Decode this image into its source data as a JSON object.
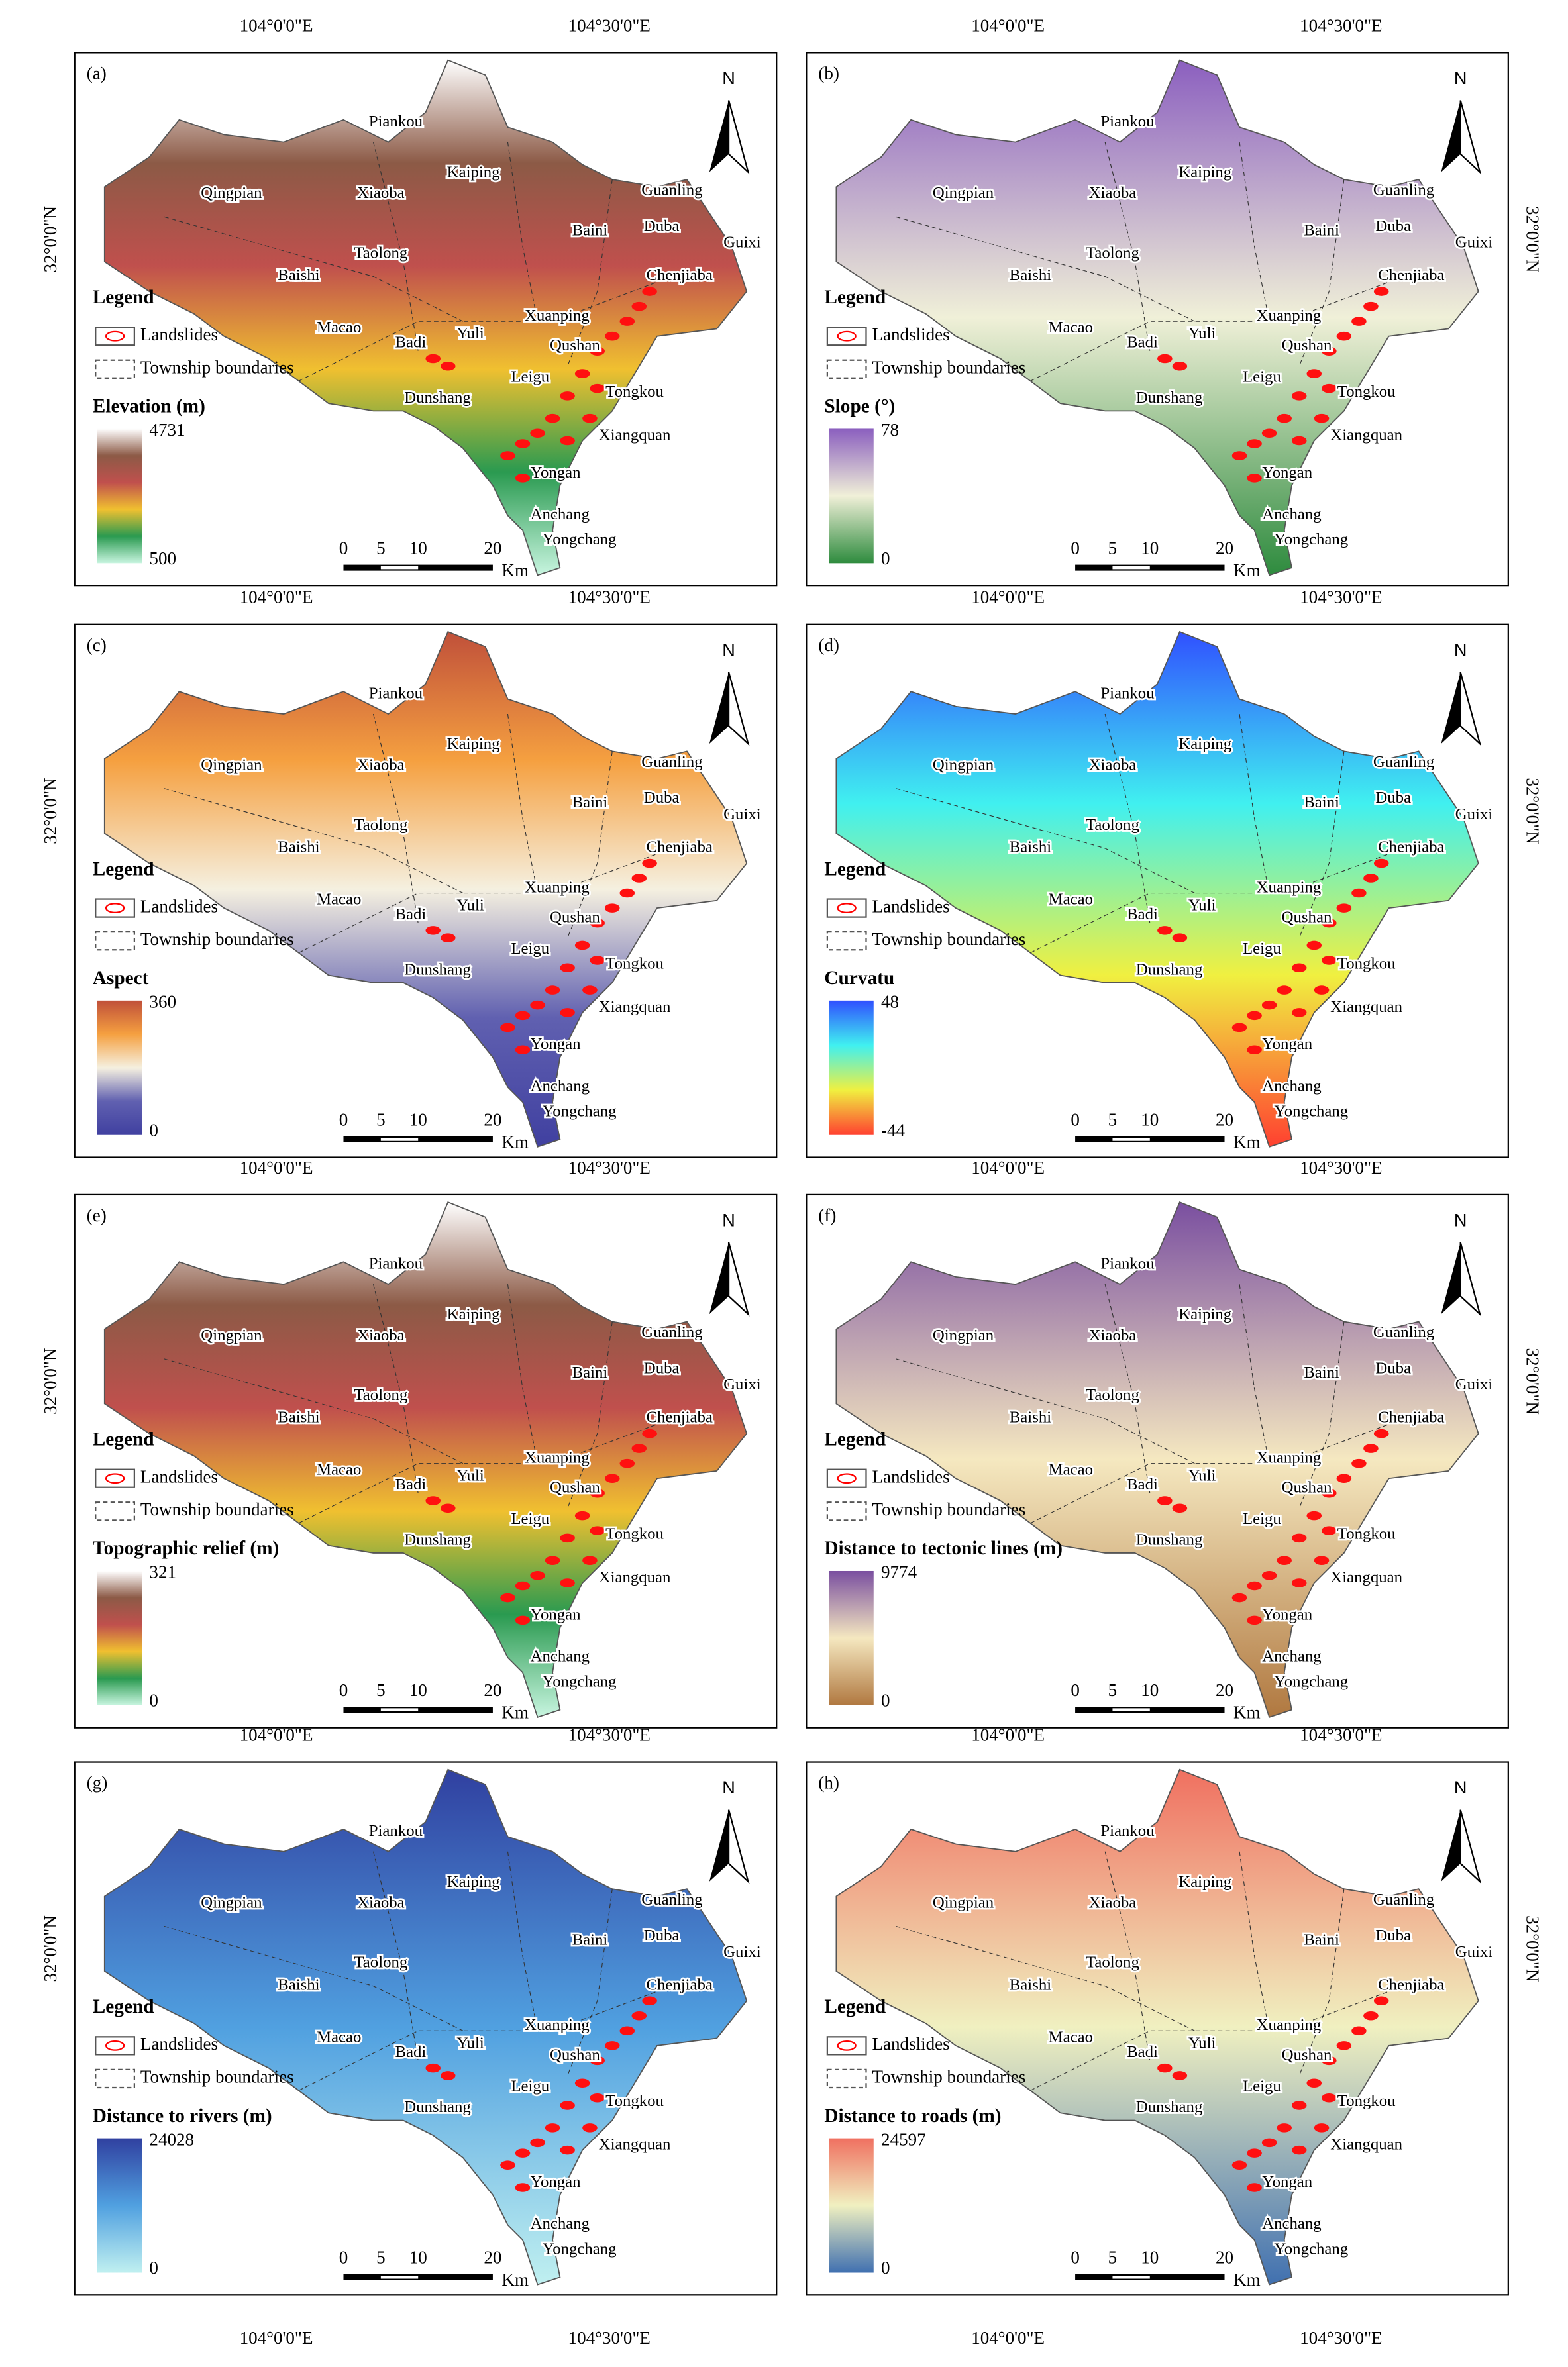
{
  "coordinates": {
    "lon_left": "104°0'0\"E",
    "lon_right": "104°30'0\"E",
    "lat": "32°0'0\"N"
  },
  "north": "N",
  "legend": {
    "title": "Legend",
    "landslides": "Landslides",
    "boundaries": "Township boundaries"
  },
  "scale_bar": {
    "ticks": [
      0,
      5,
      10,
      20
    ],
    "unit": "Km"
  },
  "townships": [
    "Piankou",
    "Qingpian",
    "Xiaoba",
    "Kaiping",
    "Guanling",
    "Baini",
    "Duba",
    "Guixi",
    "Taolong",
    "Baishi",
    "Chenjiaba",
    "Macao",
    "Xuanping",
    "Badi",
    "Yuli",
    "Qushan",
    "Dunshang",
    "Tongkou",
    "Leigu",
    "Xiangquan",
    "Yongan",
    "Anchang",
    "Yongchang"
  ],
  "panels": [
    {
      "label": "(a)",
      "legend_title": "Elevation (m)",
      "max": 4731,
      "min": 500,
      "colors": [
        "#ffffff",
        "#8c5a46",
        "#c0504d",
        "#f0c030",
        "#2a9a50",
        "#c8f5e0"
      ]
    },
    {
      "label": "(b)",
      "legend_title": "Slope (°)",
      "max": 78,
      "min": 0,
      "colors": [
        "#8b5fbf",
        "#f0f0d8",
        "#2e8b3e"
      ]
    },
    {
      "label": "(c)",
      "legend_title": "Aspect",
      "max": 360,
      "min": 0,
      "colors": [
        "#c0503a",
        "#f5a040",
        "#f5f0e0",
        "#6060b0",
        "#4040a0"
      ]
    },
    {
      "label": "(d)",
      "legend_title": "Curvatu",
      "max": 48,
      "min": -44,
      "colors": [
        "#3050ff",
        "#40f0f0",
        "#f0f040",
        "#ff4030"
      ]
    },
    {
      "label": "(e)",
      "legend_title": "Topographic relief (m)",
      "max": 321,
      "min": 0,
      "colors": [
        "#ffffff",
        "#8c5a46",
        "#c0504d",
        "#f0c030",
        "#2a9a50",
        "#c8f5e0"
      ]
    },
    {
      "label": "(f)",
      "legend_title": "Distance to tectonic lines (m)",
      "max": 9774,
      "min": 0,
      "colors": [
        "#7a4fa0",
        "#f5e8c0",
        "#b07840"
      ]
    },
    {
      "label": "(g)",
      "legend_title": "Distance to rivers (m)",
      "max": 24028,
      "min": 0,
      "colors": [
        "#3040a0",
        "#50a0e0",
        "#c0f0f0"
      ]
    },
    {
      "label": "(h)",
      "legend_title": "Distance to roads (m)",
      "max": 24597,
      "min": 0,
      "colors": [
        "#f07060",
        "#f0f0c0",
        "#4070b0"
      ]
    }
  ]
}
